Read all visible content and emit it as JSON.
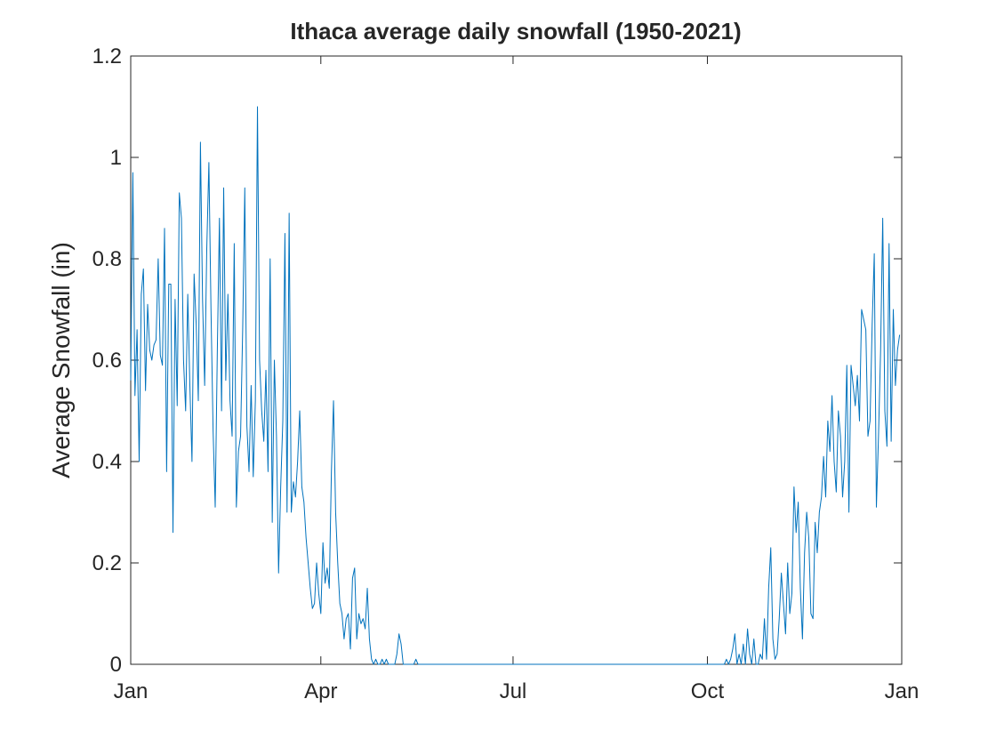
{
  "chart_data": {
    "type": "line",
    "title": "Ithaca average daily snowfall (1950-2021)",
    "y_label": "Average Snowfall (in)",
    "color": "#0072bd",
    "grid": false,
    "xlim": [
      0,
      365
    ],
    "xticks": [
      {
        "value": 0,
        "label": "Jan"
      },
      {
        "value": 90,
        "label": "Apr"
      },
      {
        "value": 181,
        "label": "Jul"
      },
      {
        "value": 273,
        "label": "Oct"
      },
      {
        "value": 365,
        "label": "Jan"
      }
    ],
    "ylim": [
      0,
      1.2
    ],
    "yticks": [
      0,
      0.2,
      0.4,
      0.6,
      0.8,
      1,
      1.2
    ],
    "values": [
      0.56,
      0.97,
      0.53,
      0.66,
      0.4,
      0.73,
      0.78,
      0.54,
      0.71,
      0.62,
      0.6,
      0.63,
      0.64,
      0.8,
      0.61,
      0.59,
      0.86,
      0.38,
      0.75,
      0.75,
      0.26,
      0.72,
      0.51,
      0.93,
      0.88,
      0.6,
      0.5,
      0.73,
      0.55,
      0.4,
      0.77,
      0.67,
      0.52,
      1.03,
      0.72,
      0.55,
      0.82,
      0.99,
      0.7,
      0.46,
      0.31,
      0.62,
      0.88,
      0.5,
      0.94,
      0.56,
      0.73,
      0.52,
      0.45,
      0.83,
      0.31,
      0.42,
      0.45,
      0.66,
      0.94,
      0.47,
      0.38,
      0.55,
      0.37,
      0.52,
      1.1,
      0.6,
      0.5,
      0.44,
      0.58,
      0.38,
      0.8,
      0.28,
      0.6,
      0.45,
      0.18,
      0.35,
      0.48,
      0.85,
      0.3,
      0.89,
      0.3,
      0.36,
      0.33,
      0.4,
      0.5,
      0.35,
      0.32,
      0.25,
      0.2,
      0.15,
      0.11,
      0.12,
      0.2,
      0.14,
      0.1,
      0.24,
      0.16,
      0.19,
      0.15,
      0.38,
      0.52,
      0.3,
      0.2,
      0.12,
      0.1,
      0.05,
      0.09,
      0.1,
      0.03,
      0.17,
      0.19,
      0.05,
      0.1,
      0.08,
      0.09,
      0.07,
      0.15,
      0.05,
      0.01,
      0,
      0.01,
      0,
      0,
      0.01,
      0,
      0.01,
      0,
      0,
      0,
      0,
      0.02,
      0.06,
      0.04,
      0,
      0,
      0,
      0,
      0,
      0,
      0.01,
      0,
      0,
      0,
      0,
      0,
      0,
      0,
      0,
      0,
      0,
      0,
      0,
      0,
      0,
      0,
      0,
      0,
      0,
      0,
      0,
      0,
      0,
      0,
      0,
      0,
      0,
      0,
      0,
      0,
      0,
      0,
      0,
      0,
      0,
      0,
      0,
      0,
      0,
      0,
      0,
      0,
      0,
      0,
      0,
      0,
      0,
      0,
      0,
      0,
      0,
      0,
      0,
      0,
      0,
      0,
      0,
      0,
      0,
      0,
      0,
      0,
      0,
      0,
      0,
      0,
      0,
      0,
      0,
      0,
      0,
      0,
      0,
      0,
      0,
      0,
      0,
      0,
      0,
      0,
      0,
      0,
      0,
      0,
      0,
      0,
      0,
      0,
      0,
      0,
      0,
      0,
      0,
      0,
      0,
      0,
      0,
      0,
      0,
      0,
      0,
      0,
      0,
      0,
      0,
      0,
      0,
      0,
      0,
      0,
      0,
      0,
      0,
      0,
      0,
      0,
      0,
      0,
      0,
      0,
      0,
      0,
      0,
      0,
      0,
      0,
      0,
      0,
      0,
      0,
      0,
      0,
      0,
      0,
      0,
      0,
      0,
      0,
      0,
      0,
      0,
      0,
      0,
      0,
      0,
      0,
      0,
      0.01,
      0,
      0.01,
      0.03,
      0.06,
      0,
      0.02,
      0,
      0.04,
      0,
      0.07,
      0.02,
      0,
      0.05,
      0,
      0,
      0.02,
      0.01,
      0.09,
      0.01,
      0.15,
      0.23,
      0.05,
      0.01,
      0.02,
      0.09,
      0.18,
      0.12,
      0.06,
      0.2,
      0.1,
      0.14,
      0.35,
      0.26,
      0.32,
      0.15,
      0.05,
      0.22,
      0.3,
      0.25,
      0.1,
      0.09,
      0.28,
      0.22,
      0.3,
      0.33,
      0.41,
      0.33,
      0.48,
      0.42,
      0.53,
      0.4,
      0.34,
      0.5,
      0.45,
      0.33,
      0.4,
      0.59,
      0.3,
      0.59,
      0.55,
      0.51,
      0.57,
      0.48,
      0.7,
      0.68,
      0.66,
      0.45,
      0.48,
      0.67,
      0.81,
      0.31,
      0.45,
      0.62,
      0.88,
      0.5,
      0.43,
      0.83,
      0.44,
      0.7,
      0.55,
      0.62,
      0.65
    ]
  }
}
